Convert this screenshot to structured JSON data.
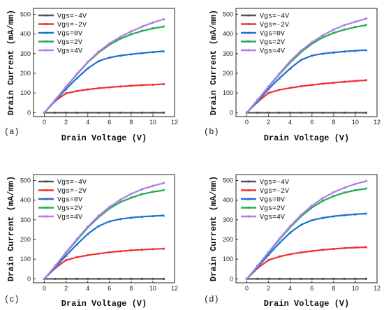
{
  "figure": {
    "xlabel": "Drain Voltage (V)",
    "ylabel": "Drain Current (mA/mm)"
  },
  "colors": {
    "Vgs=-4V": "#555555",
    "Vgs=-2V": "#ee3333",
    "Vgs=0V": "#1f6fd6",
    "Vgs=2V": "#22aa55",
    "Vgs=4V": "#b07ee6"
  },
  "chart_data": [
    {
      "type": "line",
      "panel_label": "(a)",
      "xlabel": "Drain Voltage (V)",
      "ylabel": "Drain Current (mA/mm)",
      "xlim": [
        -1,
        12
      ],
      "ylim": [
        -20,
        530
      ],
      "xticks": [
        0,
        2,
        4,
        6,
        8,
        10,
        12
      ],
      "yticks": [
        0,
        100,
        200,
        300,
        400,
        500
      ],
      "legend_position": "top-left",
      "x": [
        0,
        1,
        2,
        3,
        4,
        5,
        6,
        7,
        8,
        9,
        10,
        11
      ],
      "series": [
        {
          "name": "Vgs=-4V",
          "values": [
            0,
            0,
            0,
            0,
            0,
            0,
            0,
            0,
            0,
            0,
            0,
            0
          ]
        },
        {
          "name": "Vgs=-2V",
          "values": [
            0,
            60,
            98,
            110,
            118,
            124,
            129,
            133,
            137,
            140,
            142,
            145
          ]
        },
        {
          "name": "Vgs=0V",
          "values": [
            0,
            60,
            120,
            175,
            225,
            262,
            280,
            290,
            297,
            303,
            308,
            312
          ]
        },
        {
          "name": "Vgs=2V",
          "values": [
            0,
            65,
            130,
            195,
            255,
            305,
            345,
            375,
            398,
            415,
            428,
            437
          ]
        },
        {
          "name": "Vgs=4V",
          "values": [
            0,
            65,
            132,
            197,
            258,
            310,
            352,
            385,
            413,
            437,
            458,
            475
          ]
        }
      ]
    },
    {
      "type": "line",
      "panel_label": "(b)",
      "xlabel": "Drain Voltage (V)",
      "ylabel": "Drain Current (mA/mm)",
      "xlim": [
        -1,
        12
      ],
      "ylim": [
        -20,
        530
      ],
      "xticks": [
        0,
        2,
        4,
        6,
        8,
        10,
        12
      ],
      "yticks": [
        0,
        100,
        200,
        300,
        400,
        500
      ],
      "legend_position": "top-left",
      "x": [
        0,
        1,
        2,
        3,
        4,
        5,
        6,
        7,
        8,
        9,
        10,
        11
      ],
      "series": [
        {
          "name": "Vgs=-4V",
          "values": [
            0,
            0,
            0,
            0,
            0,
            0,
            0,
            0,
            0,
            0,
            0,
            0
          ]
        },
        {
          "name": "Vgs=-2V",
          "values": [
            0,
            55,
            100,
            116,
            126,
            134,
            141,
            147,
            152,
            157,
            161,
            165
          ]
        },
        {
          "name": "Vgs=0V",
          "values": [
            0,
            58,
            120,
            175,
            225,
            268,
            290,
            300,
            306,
            311,
            315,
            318
          ]
        },
        {
          "name": "Vgs=2V",
          "values": [
            0,
            65,
            130,
            195,
            255,
            307,
            350,
            382,
            405,
            422,
            435,
            445
          ]
        },
        {
          "name": "Vgs=4V",
          "values": [
            0,
            65,
            133,
            199,
            262,
            315,
            358,
            393,
            422,
            445,
            462,
            478
          ]
        }
      ]
    },
    {
      "type": "line",
      "panel_label": "(c)",
      "xlabel": "Drain Voltage (V)",
      "ylabel": "Drain Current (mA/mm)",
      "xlim": [
        -1,
        12
      ],
      "ylim": [
        -20,
        530
      ],
      "xticks": [
        0,
        2,
        4,
        6,
        8,
        10,
        12
      ],
      "yticks": [
        0,
        100,
        200,
        300,
        400,
        500
      ],
      "legend_position": "top-left",
      "x": [
        0,
        1,
        2,
        3,
        4,
        5,
        6,
        7,
        8,
        9,
        10,
        11
      ],
      "series": [
        {
          "name": "Vgs=-4V",
          "values": [
            0,
            0,
            0,
            0,
            0,
            0,
            0,
            0,
            0,
            0,
            0,
            0
          ]
        },
        {
          "name": "Vgs=-2V",
          "values": [
            0,
            55,
            95,
            110,
            120,
            128,
            135,
            140,
            145,
            148,
            151,
            153
          ]
        },
        {
          "name": "Vgs=0V",
          "values": [
            0,
            58,
            118,
            175,
            228,
            268,
            292,
            304,
            311,
            316,
            319,
            322
          ]
        },
        {
          "name": "Vgs=2V",
          "values": [
            0,
            65,
            132,
            197,
            260,
            313,
            357,
            390,
            412,
            430,
            442,
            450
          ]
        },
        {
          "name": "Vgs=4V",
          "values": [
            0,
            66,
            135,
            202,
            265,
            320,
            365,
            402,
            432,
            455,
            472,
            487
          ]
        }
      ]
    },
    {
      "type": "line",
      "panel_label": "(d)",
      "xlabel": "Drain Voltage (V)",
      "ylabel": "Drain Current (mA/mm)",
      "xlim": [
        -1,
        12
      ],
      "ylim": [
        -20,
        530
      ],
      "xticks": [
        0,
        2,
        4,
        6,
        8,
        10,
        12
      ],
      "yticks": [
        0,
        100,
        200,
        300,
        400,
        500
      ],
      "legend_position": "top-left",
      "x": [
        0,
        1,
        2,
        3,
        4,
        5,
        6,
        7,
        8,
        9,
        10,
        11
      ],
      "series": [
        {
          "name": "Vgs=-4V",
          "values": [
            0,
            0,
            0,
            0,
            0,
            0,
            0,
            0,
            0,
            0,
            0,
            0
          ]
        },
        {
          "name": "Vgs=-2V",
          "values": [
            0,
            55,
            95,
            113,
            125,
            134,
            141,
            147,
            152,
            156,
            159,
            161
          ]
        },
        {
          "name": "Vgs=0V",
          "values": [
            0,
            60,
            122,
            182,
            235,
            275,
            298,
            310,
            318,
            324,
            328,
            332
          ]
        },
        {
          "name": "Vgs=2V",
          "values": [
            0,
            66,
            133,
            200,
            262,
            317,
            362,
            396,
            420,
            438,
            450,
            458
          ]
        },
        {
          "name": "Vgs=4V",
          "values": [
            0,
            67,
            136,
            204,
            268,
            325,
            372,
            410,
            440,
            463,
            482,
            497
          ]
        }
      ]
    }
  ]
}
